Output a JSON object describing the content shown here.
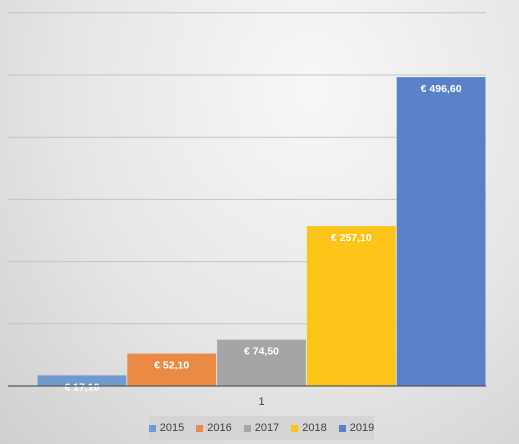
{
  "chart_data": {
    "type": "bar",
    "categories": [
      "1"
    ],
    "series": [
      {
        "name": "2015",
        "values": [
          17.1
        ],
        "label": "€ 17,10",
        "color": "#6f9bd1"
      },
      {
        "name": "2016",
        "values": [
          52.1
        ],
        "label": "€ 52,10",
        "color": "#e98b45"
      },
      {
        "name": "2017",
        "values": [
          74.5
        ],
        "label": "€ 74,50",
        "color": "#a5a5a5"
      },
      {
        "name": "2018",
        "values": [
          257.1
        ],
        "label": "€ 257,10",
        "color": "#fcc419"
      },
      {
        "name": "2019",
        "values": [
          496.6
        ],
        "label": "€ 496,60",
        "color": "#5a80c8"
      }
    ],
    "ylim": [
      0,
      600
    ],
    "ytick_step": 100,
    "grid": true,
    "legend": "bottom",
    "title": "",
    "xlabel": "",
    "ylabel": ""
  }
}
